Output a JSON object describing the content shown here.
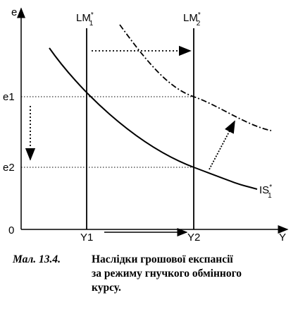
{
  "axes": {
    "y_label": "e",
    "x_label": "Y",
    "origin": "0"
  },
  "y_ticks": [
    "e1",
    "e2"
  ],
  "x_ticks": [
    "Y1",
    "Y2"
  ],
  "curves": [
    {
      "base": "LM",
      "sup": "*",
      "sub": "1"
    },
    {
      "base": "LM",
      "sup": "*",
      "sub": "2"
    },
    {
      "base": "IS",
      "sup": "*",
      "sub": "1"
    }
  ],
  "caption": {
    "label": "Мал. 13.4.",
    "lines": [
      "Наслідки грошової експансії",
      "за режиму гнучкого обмінного",
      "курсу."
    ]
  }
}
